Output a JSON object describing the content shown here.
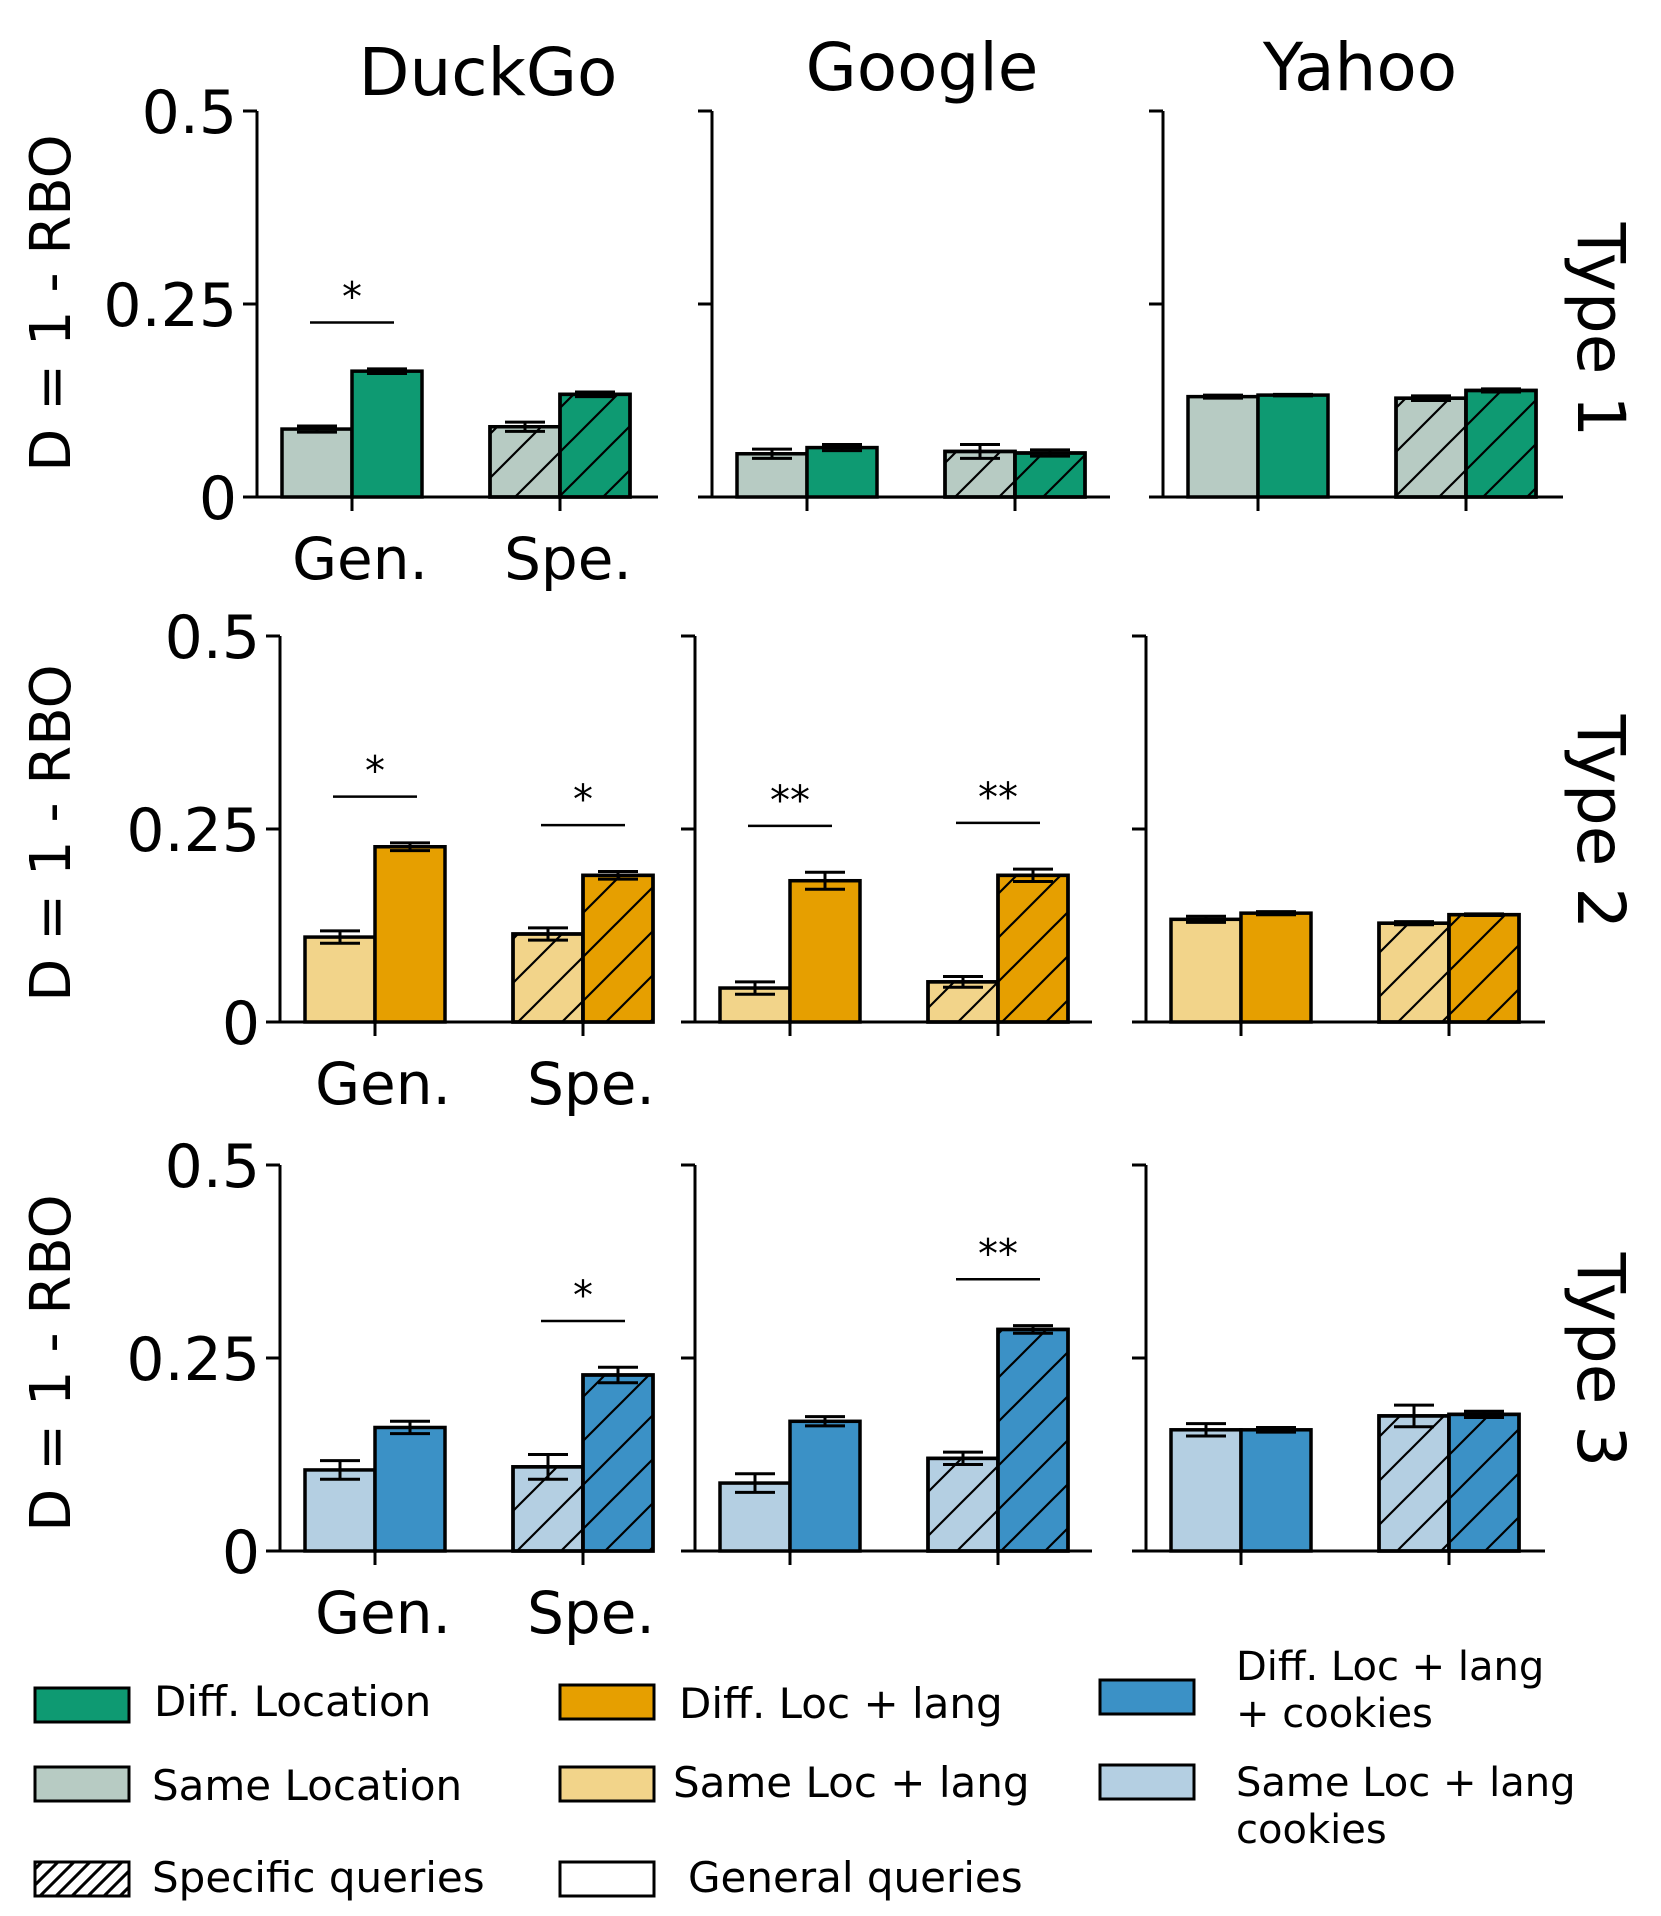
{
  "colors": {
    "type1_diff": "#0e9a72",
    "type1_same": "#b7cbc3",
    "type2_diff": "#e69f00",
    "type2_same": "#f2d48a",
    "type3_diff": "#3b91c6",
    "type3_same": "#b4cfe2",
    "type1_label": "#0e9a72",
    "type2_label": "#e69f00",
    "type3_label": "#3b91c6"
  },
  "columns": [
    "DuckGo",
    "Google",
    "Yahoo"
  ],
  "rows": [
    "Type 1",
    "Type 2",
    "Type 3"
  ],
  "ylabel": "D = 1 - RBO",
  "yticks": [
    "0",
    "0.25",
    "0.5"
  ],
  "categories": [
    "Gen.",
    "Spe."
  ],
  "legend": {
    "t1_diff": "Diff. Location",
    "t1_same": "Same  Location",
    "t2_diff": "Diff. Loc + lang",
    "t2_same": "Same  Loc + lang",
    "t3_diff_1": "Diff. Loc + lang",
    "t3_diff_2": "+ cookies",
    "t3_same_1": "Same Loc + lang",
    "t3_same_2": "cookies",
    "specific": "Specific queries",
    "general": "General queries"
  },
  "chart_data": {
    "type": "bar",
    "ylim": [
      0,
      0.5
    ],
    "series_names": [
      "Same",
      "Diff."
    ],
    "panels": [
      {
        "row": 0,
        "col": 0,
        "values": [
          [
            0.088,
            0.163
          ],
          [
            0.091,
            0.133
          ]
        ],
        "errors": [
          [
            0.004,
            0.003
          ],
          [
            0.006,
            0.003
          ]
        ],
        "sig": [
          "*",
          ""
        ]
      },
      {
        "row": 0,
        "col": 1,
        "values": [
          [
            0.056,
            0.064
          ],
          [
            0.059,
            0.057
          ]
        ],
        "errors": [
          [
            0.006,
            0.004
          ],
          [
            0.009,
            0.004
          ]
        ],
        "sig": [
          "",
          ""
        ]
      },
      {
        "row": 0,
        "col": 2,
        "values": [
          [
            0.13,
            0.132
          ],
          [
            0.128,
            0.138
          ]
        ],
        "errors": [
          [
            0.002,
            0.001
          ],
          [
            0.003,
            0.002
          ]
        ],
        "sig": [
          "",
          ""
        ]
      },
      {
        "row": 1,
        "col": 0,
        "values": [
          [
            0.11,
            0.227
          ],
          [
            0.114,
            0.19
          ]
        ],
        "errors": [
          [
            0.008,
            0.005
          ],
          [
            0.008,
            0.005
          ]
        ],
        "sig": [
          "*",
          "*"
        ]
      },
      {
        "row": 1,
        "col": 1,
        "values": [
          [
            0.044,
            0.183
          ],
          [
            0.052,
            0.19
          ]
        ],
        "errors": [
          [
            0.008,
            0.011
          ],
          [
            0.007,
            0.008
          ]
        ],
        "sig": [
          "**",
          "**"
        ]
      },
      {
        "row": 1,
        "col": 2,
        "values": [
          [
            0.133,
            0.141
          ],
          [
            0.128,
            0.139
          ]
        ],
        "errors": [
          [
            0.004,
            0.002
          ],
          [
            0.002,
            0.001
          ]
        ],
        "sig": [
          "",
          ""
        ]
      },
      {
        "row": 2,
        "col": 0,
        "values": [
          [
            0.105,
            0.16
          ],
          [
            0.109,
            0.228
          ]
        ],
        "errors": [
          [
            0.012,
            0.008
          ],
          [
            0.016,
            0.01
          ]
        ],
        "sig": [
          "",
          "*"
        ]
      },
      {
        "row": 2,
        "col": 1,
        "values": [
          [
            0.088,
            0.168
          ],
          [
            0.12,
            0.287
          ]
        ],
        "errors": [
          [
            0.012,
            0.006
          ],
          [
            0.008,
            0.005
          ]
        ],
        "sig": [
          "",
          "**"
        ]
      },
      {
        "row": 2,
        "col": 2,
        "values": [
          [
            0.157,
            0.157
          ],
          [
            0.175,
            0.177
          ]
        ],
        "errors": [
          [
            0.008,
            0.003
          ],
          [
            0.014,
            0.004
          ]
        ],
        "sig": [
          "",
          ""
        ]
      }
    ]
  }
}
